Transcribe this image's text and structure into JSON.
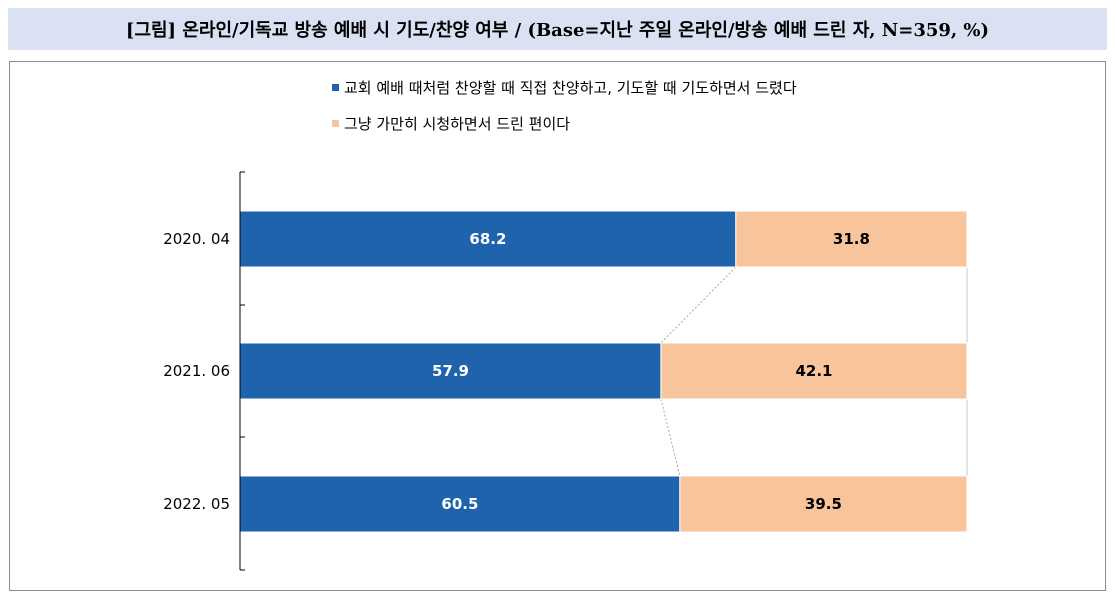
{
  "title": "[그림] 온라인/기독교 방송 예배 시 기도/찬양 여부 / (Base=지난 주일 온라인/방송 예배 드린 자, N=359, %)",
  "colors": {
    "series1": "#1f63ad",
    "series2": "#f8c49b",
    "series1_label": "#ffffff",
    "series2_label": "#000000",
    "title_bg": "#d9e1f2"
  },
  "chart_data": {
    "type": "bar",
    "orientation": "horizontal",
    "stacked": "100%",
    "categories": [
      "2020. 04",
      "2021. 06",
      "2022. 05"
    ],
    "series": [
      {
        "name": "교회 예배 때처럼 찬양할 때 직접 찬양하고, 기도할 때 기도하면서 드렸다",
        "values": [
          68.2,
          57.9,
          60.5
        ]
      },
      {
        "name": "그냥 가만히 시청하면서 드린 편이다",
        "values": [
          31.8,
          42.1,
          39.5
        ]
      }
    ],
    "xlim": [
      0,
      100
    ],
    "legend_position": "top",
    "grid": false,
    "series_lines": true
  }
}
